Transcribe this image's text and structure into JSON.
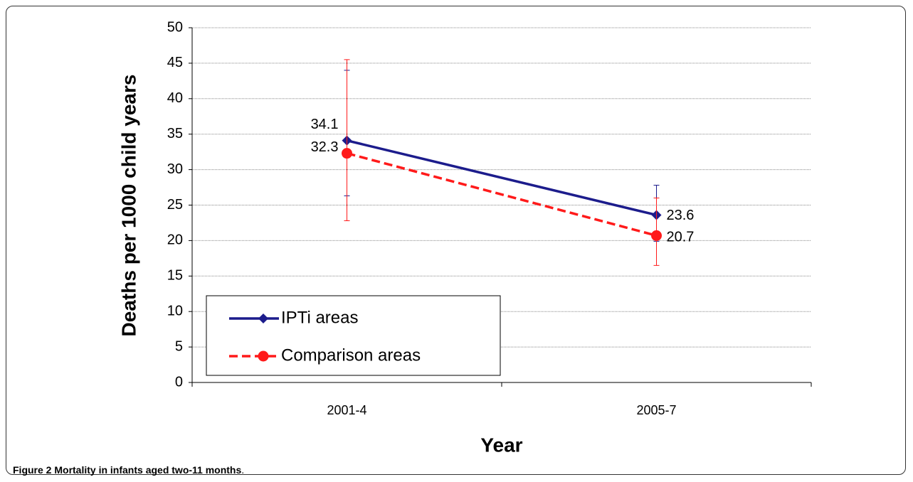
{
  "chart_data": {
    "type": "line",
    "x_label": "Year",
    "y_label": "Deaths per 1000 child years",
    "categories": [
      "2001-4",
      "2005-7"
    ],
    "series": [
      {
        "name": "IPTi areas",
        "color": "#1c1c8c",
        "marker": "diamond",
        "dashed": false,
        "values": [
          34.1,
          23.6
        ],
        "lower": [
          26.3,
          19.9
        ],
        "upper": [
          44.0,
          27.8
        ]
      },
      {
        "name": "Comparison areas",
        "color": "#ff1a1a",
        "marker": "circle",
        "dashed": true,
        "values": [
          32.3,
          20.7
        ],
        "lower": [
          22.8,
          16.5
        ],
        "upper": [
          45.5,
          26.0
        ]
      }
    ],
    "ylim": [
      0,
      50
    ],
    "yticks": [
      0,
      5,
      10,
      15,
      20,
      25,
      30,
      35,
      40,
      45,
      50
    ],
    "grid": true,
    "legend": "bottom-left"
  },
  "caption": {
    "label": "Figure 2",
    "text": "Mortality in infants aged two-11 months",
    "end": "."
  }
}
